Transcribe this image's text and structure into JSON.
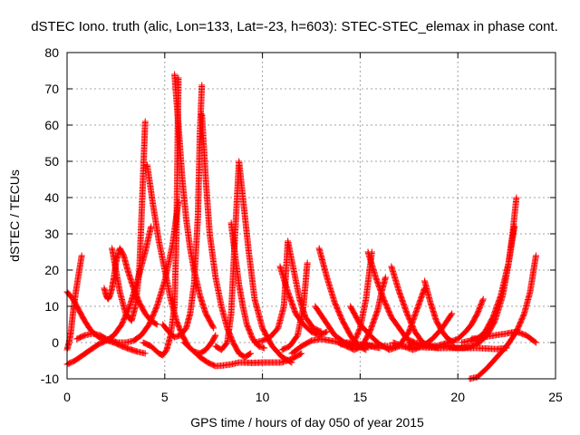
{
  "chart_data": {
    "type": "scatter",
    "title": "dSTEC Iono. truth (alic, Lon=133, Lat=-23, h=603): STEC-STEC_elemax in phase cont.",
    "xlabel": "GPS time / hours of day 050 of year 2015",
    "ylabel": "dSTEC  / TECUs",
    "xlim": [
      0,
      25
    ],
    "ylim": [
      -10,
      80
    ],
    "xticks": [
      "0",
      "5",
      "10",
      "15",
      "20",
      "25"
    ],
    "yticks": [
      "-10",
      "0",
      "10",
      "20",
      "30",
      "40",
      "50",
      "60",
      "70",
      "80"
    ],
    "grid": true,
    "marker": "plus",
    "color": "#ff0000",
    "series": [
      {
        "x": [
          0.0,
          0.1,
          0.2,
          0.3,
          0.45,
          0.6,
          0.75
        ],
        "y": [
          -2,
          0,
          3,
          8,
          14,
          19,
          24
        ]
      },
      {
        "x": [
          0.0,
          0.3,
          0.6,
          0.9,
          1.2,
          1.5,
          1.8,
          2.1,
          2.4,
          2.8,
          3.2,
          3.6,
          4.0
        ],
        "y": [
          14,
          12,
          9,
          6,
          3.5,
          2,
          1,
          0.5,
          0,
          -1,
          -1.8,
          -2.5,
          -3
        ]
      },
      {
        "x": [
          0.0,
          0.4,
          0.8,
          1.2,
          1.6,
          2.0,
          2.4,
          2.8,
          3.2,
          3.6,
          4.0,
          4.3
        ],
        "y": [
          -6,
          -5,
          -3.5,
          -2,
          -0.5,
          0.5,
          2,
          5,
          10,
          17,
          25,
          32
        ]
      },
      {
        "x": [
          0.5,
          0.9,
          1.3,
          1.7,
          2.0,
          2.3,
          2.6,
          3.0,
          3.4,
          3.8,
          4.2,
          4.6,
          5.0,
          5.4,
          5.7
        ],
        "y": [
          1,
          2,
          2.5,
          2,
          1,
          0.5,
          0,
          0,
          0.5,
          2,
          5,
          10,
          17,
          27,
          39
        ]
      },
      {
        "x": [
          1.9,
          2.0,
          2.1,
          2.2,
          2.3,
          2.4,
          2.5,
          2.7,
          2.9,
          3.1,
          3.4,
          3.7,
          4.0,
          4.3,
          4.6
        ],
        "y": [
          15,
          13,
          12,
          13,
          15,
          18,
          22,
          26,
          24,
          20,
          15,
          11,
          8,
          6,
          5
        ]
      },
      {
        "x": [
          2.3,
          2.5,
          2.7,
          3.0,
          3.3,
          3.5,
          3.7,
          3.85,
          4.0
        ],
        "y": [
          26,
          20,
          14,
          8,
          6,
          10,
          20,
          40,
          61
        ]
      },
      {
        "x": [
          4.1,
          4.4,
          4.7,
          5.0,
          5.3,
          5.6,
          5.9,
          6.2,
          6.5,
          6.8,
          7.1,
          7.4,
          7.6
        ],
        "y": [
          49,
          38,
          28,
          20,
          12,
          6,
          2,
          -1,
          -2.5,
          -3,
          -2,
          0,
          2
        ]
      },
      {
        "x": [
          3.9,
          4.1,
          4.3,
          4.5,
          4.7,
          4.9,
          5.1,
          5.3,
          5.5,
          5.6,
          5.7
        ],
        "y": [
          0,
          -0.5,
          -1,
          -2,
          -3,
          -3.5,
          -2,
          2,
          10,
          30,
          73
        ]
      },
      {
        "x": [
          5.5,
          5.7,
          5.9,
          6.1,
          6.3,
          6.5,
          6.8,
          7.1,
          7.5
        ],
        "y": [
          74,
          60,
          45,
          34,
          26,
          20,
          13,
          8,
          4
        ]
      },
      {
        "x": [
          4.9,
          5.2,
          5.5,
          5.8,
          6.1,
          6.3,
          6.5,
          6.7,
          6.8,
          6.9
        ],
        "y": [
          5,
          3,
          1.5,
          2,
          4,
          8,
          16,
          35,
          58,
          71
        ]
      },
      {
        "x": [
          6.9,
          7.1,
          7.3,
          7.6,
          7.9,
          8.2,
          8.5,
          8.8,
          9.1,
          9.4
        ],
        "y": [
          63,
          45,
          30,
          18,
          10,
          4,
          0,
          -3,
          -4,
          -3
        ]
      },
      {
        "x": [
          6.0,
          6.4,
          6.8,
          7.2,
          7.6,
          8.0,
          8.4,
          8.8,
          9.0
        ],
        "y": [
          0,
          -2,
          -4,
          -5.5,
          -6.5,
          -6.3,
          -6,
          -5.5,
          -5.5
        ]
      },
      {
        "x": [
          8.4,
          8.6,
          8.8,
          9.0,
          9.2,
          9.5,
          9.8,
          10.1
        ],
        "y": [
          33,
          24,
          16,
          10,
          5,
          1,
          -1,
          -1.5
        ]
      },
      {
        "x": [
          7.6,
          7.9,
          8.2,
          8.4,
          8.6,
          8.8,
          9.0,
          9.3,
          9.6,
          10.0,
          10.5,
          11.0,
          11.5
        ],
        "y": [
          -1,
          -2,
          0,
          8,
          30,
          50,
          40,
          25,
          12,
          4,
          -1,
          -4,
          -5.5
        ]
      },
      {
        "x": [
          9.0,
          9.5,
          10.0,
          10.5,
          11.0,
          11.5,
          12.0
        ],
        "y": [
          -5.5,
          -5.6,
          -5.5,
          -5.5,
          -5.5,
          -4.5,
          -3
        ]
      },
      {
        "x": [
          9.6,
          10.0,
          10.4,
          10.8,
          11.1,
          11.3,
          11.6,
          11.9,
          12.2,
          12.6,
          13.0
        ],
        "y": [
          0,
          0.5,
          1.5,
          4,
          10,
          28,
          20,
          12,
          7,
          4,
          3
        ]
      },
      {
        "x": [
          10.9,
          11.3,
          11.7,
          12.1,
          12.5,
          12.9,
          13.3
        ],
        "y": [
          21,
          14,
          8,
          5,
          3,
          2,
          3
        ]
      },
      {
        "x": [
          11.0,
          11.4,
          11.8,
          12.1,
          12.3
        ],
        "y": [
          -2,
          -1,
          2,
          10,
          22
        ]
      },
      {
        "x": [
          12.9,
          13.3,
          13.7,
          14.1,
          14.5,
          14.9,
          15.3
        ],
        "y": [
          26,
          18,
          11,
          6,
          2,
          -1,
          -2
        ]
      },
      {
        "x": [
          11.5,
          12.0,
          12.5,
          13.0,
          13.5,
          14.0,
          14.5,
          15.0,
          15.5,
          16.0
        ],
        "y": [
          -3,
          -1,
          0.5,
          1,
          0.5,
          0,
          0,
          -0.5,
          -1,
          -1.5
        ]
      },
      {
        "x": [
          12.7,
          13.2,
          13.7,
          14.2,
          14.6,
          15.0,
          15.3,
          15.6
        ],
        "y": [
          10,
          6,
          2,
          0,
          -1,
          4,
          12,
          25
        ]
      },
      {
        "x": [
          15.4,
          15.8,
          16.2,
          16.6,
          17.0,
          17.4,
          17.8,
          18.2,
          18.6,
          19.0
        ],
        "y": [
          25,
          18,
          12,
          7,
          4,
          1,
          0,
          -0.5,
          -1,
          -1.5
        ]
      },
      {
        "x": [
          13.9,
          14.3,
          14.7,
          15.1,
          15.5,
          15.9,
          16.1,
          16.3
        ],
        "y": [
          0,
          -1,
          -2,
          -1,
          3,
          9,
          14,
          18
        ]
      },
      {
        "x": [
          16.6,
          17.0,
          17.4,
          17.8,
          18.2,
          18.6,
          19.0,
          19.4
        ],
        "y": [
          21,
          14,
          8,
          3,
          0,
          -1,
          -1.5,
          -1
        ]
      },
      {
        "x": [
          14.5,
          15.0,
          15.5,
          16.0,
          16.5,
          17.0,
          17.5,
          17.9,
          18.3
        ],
        "y": [
          10,
          5,
          2,
          -0.5,
          -2,
          -1,
          3,
          9,
          15
        ]
      },
      {
        "x": [
          18.3,
          18.6,
          18.9,
          19.2,
          19.5,
          19.8
        ],
        "y": [
          17,
          11,
          6,
          3,
          1,
          0
        ]
      },
      {
        "x": [
          16.7,
          17.2,
          17.7,
          18.2,
          18.7,
          19.2,
          19.7
        ],
        "y": [
          0,
          -1,
          -2,
          -1,
          1,
          4,
          8
        ]
      },
      {
        "x": [
          14.0,
          15.0,
          16.0,
          17.0,
          18.0,
          19.0,
          20.0,
          21.0,
          22.0,
          22.5
        ],
        "y": [
          -0.5,
          -0.5,
          -1,
          -1,
          -1.2,
          -1.5,
          -1.5,
          -1.5,
          -1.8,
          -1.5
        ]
      },
      {
        "x": [
          17.5,
          18.2,
          18.9,
          19.5,
          20.0,
          20.4,
          20.7,
          21.0,
          21.3
        ],
        "y": [
          0,
          -1,
          -1,
          0,
          1,
          3,
          5,
          8,
          12
        ]
      },
      {
        "x": [
          19.5,
          19.9,
          20.3,
          20.7,
          21.1,
          21.5,
          21.9,
          22.3,
          22.6,
          22.9
        ],
        "y": [
          -1,
          -1.5,
          -1.5,
          -1,
          0,
          2,
          6,
          13,
          22,
          32
        ]
      },
      {
        "x": [
          20.2,
          20.6,
          21.0,
          21.4,
          21.8,
          22.2,
          22.6,
          22.8,
          23.0
        ],
        "y": [
          0,
          0.5,
          1,
          3,
          7,
          13,
          22,
          30,
          40
        ]
      },
      {
        "x": [
          20.6,
          21.0,
          21.5,
          22.0,
          22.5,
          23.0,
          23.4,
          23.7,
          24.0
        ],
        "y": [
          -10,
          -9.5,
          -7,
          -4,
          -1,
          3,
          8,
          14,
          24
        ]
      },
      {
        "x": [
          20.7,
          21.3,
          21.9,
          22.5,
          23.0,
          23.5,
          24.0
        ],
        "y": [
          1,
          1.5,
          2,
          2.5,
          3,
          2,
          0
        ]
      }
    ]
  }
}
